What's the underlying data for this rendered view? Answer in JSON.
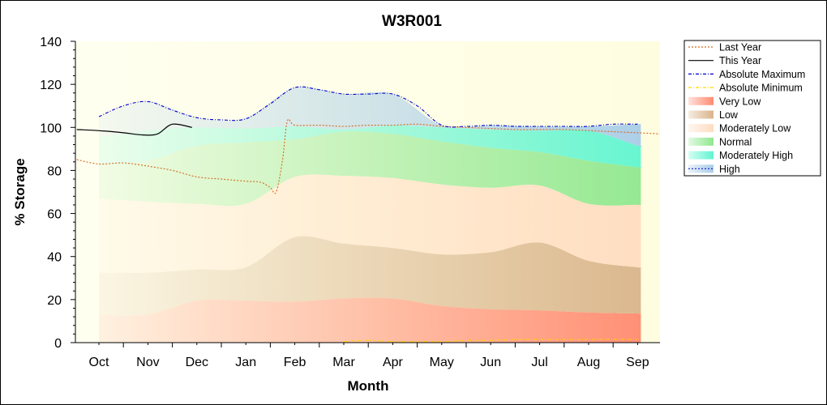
{
  "chart_data": {
    "type": "area",
    "title": "W3R001",
    "xlabel": "Month",
    "ylabel": "% Storage",
    "ylim": [
      0,
      140
    ],
    "yticks": [
      0,
      20,
      40,
      60,
      80,
      100,
      120,
      140
    ],
    "categories": [
      "Oct",
      "Nov",
      "Dec",
      "Jan",
      "Feb",
      "Mar",
      "Apr",
      "May",
      "Jun",
      "Jul",
      "Aug",
      "Sep"
    ],
    "grid": false,
    "legend_position": "right",
    "bands": [
      {
        "name": "Very Low",
        "color": "#ff8a70",
        "lower": [
          0,
          0,
          0,
          0,
          0,
          0,
          0,
          0,
          0,
          0,
          0,
          0,
          0
        ],
        "upper": [
          13,
          13,
          19.5,
          19.5,
          19,
          20.5,
          20.5,
          17,
          15.5,
          15,
          14,
          13.5,
          13.5
        ]
      },
      {
        "name": "Low",
        "color": "#d9b48a",
        "lower": [
          13,
          13,
          19.5,
          19.5,
          19,
          20.5,
          20.5,
          17,
          15.5,
          15,
          14,
          13.5,
          13.5
        ],
        "upper": [
          32.5,
          32.5,
          34,
          35,
          49,
          46,
          44,
          41,
          42,
          46.5,
          38,
          35,
          35
        ]
      },
      {
        "name": "Moderately Low",
        "color": "#ffdcc0",
        "lower": [
          32.5,
          32.5,
          34,
          35,
          49,
          46,
          44,
          41,
          42,
          46.5,
          38,
          35,
          35
        ],
        "upper": [
          67,
          65.5,
          64.5,
          64.5,
          77,
          77.5,
          76.5,
          73.5,
          72,
          73,
          64.5,
          64,
          64
        ]
      },
      {
        "name": "Normal",
        "color": "#8fe88f",
        "lower": [
          67,
          65.5,
          64.5,
          64.5,
          77,
          77.5,
          76.5,
          73.5,
          72,
          73,
          64.5,
          64,
          64
        ],
        "upper": [
          83,
          84.5,
          91.5,
          93,
          94.5,
          98,
          97,
          93.5,
          90.5,
          88.5,
          84.5,
          81.5,
          81.5
        ]
      },
      {
        "name": "Moderately High",
        "color": "#5ff5d0",
        "lower": [
          83,
          84.5,
          91.5,
          93,
          94.5,
          98,
          97,
          93.5,
          90.5,
          88.5,
          84.5,
          81.5,
          81.5
        ],
        "upper": [
          95.5,
          98.5,
          100,
          99.5,
          100.5,
          99,
          101,
          100,
          99,
          98.5,
          98.5,
          91.5,
          91.5
        ]
      },
      {
        "name": "High",
        "color": "#a8cde8",
        "lower": [
          95.5,
          98.5,
          100,
          99.5,
          100.5,
          99,
          101,
          100,
          99,
          98.5,
          98.5,
          91.5,
          91.5
        ],
        "upper": [
          105,
          112,
          104.5,
          104.5,
          118.5,
          115.5,
          115.5,
          101,
          101,
          100.5,
          100.5,
          101.5,
          101.5
        ]
      }
    ],
    "band_x": [
      0,
      1,
      2,
      3,
      4,
      5,
      6,
      7,
      8,
      9,
      10,
      11,
      11
    ],
    "lines": [
      {
        "name": "Last Year",
        "color": "#d2691e",
        "style": "dotted",
        "x": [
          -0.45,
          0,
          0.5,
          1,
          1.5,
          2,
          2.5,
          3,
          3.3,
          3.5,
          3.62,
          3.75,
          3.85,
          4,
          4.5,
          5,
          5.5,
          6,
          6.5,
          7,
          7.5,
          8,
          8.5,
          9,
          9.5,
          10,
          10.5,
          11,
          11.45
        ],
        "y": [
          85,
          83,
          83.5,
          82,
          80,
          77,
          76,
          75,
          74.5,
          72,
          70,
          85,
          103,
          101,
          101,
          100.5,
          101,
          101,
          101.5,
          100.5,
          100,
          99.5,
          99,
          99,
          99,
          98.5,
          98,
          97.5,
          97
        ]
      },
      {
        "name": "This Year",
        "color": "#000000",
        "style": "solid",
        "x": [
          -0.45,
          0,
          0.5,
          0.9,
          1.2,
          1.5,
          2,
          1.9
        ],
        "y": [
          99,
          98.5,
          97.5,
          96.5,
          97,
          101,
          100,
          101
        ],
        "x_fixed": [
          -0.45,
          0,
          0.5,
          0.9,
          1.2,
          1.5,
          1.9
        ],
        "y_fixed": [
          99,
          98.5,
          97.5,
          96.5,
          97,
          101.5,
          100
        ]
      },
      {
        "name": "Absolute Maximum",
        "color": "#0000cc",
        "style": "dashdot",
        "x": [
          0,
          0.5,
          1,
          1.5,
          2,
          2.5,
          3,
          3.5,
          4,
          4.5,
          5,
          5.5,
          6,
          6.5,
          7,
          7.5,
          8,
          8.5,
          9,
          9.5,
          10,
          10.5,
          11
        ],
        "y": [
          105,
          110,
          112,
          108,
          104.5,
          103.5,
          104,
          111,
          118.5,
          117.5,
          115.5,
          115.5,
          115.5,
          110,
          101,
          100.5,
          101,
          100.5,
          100.5,
          100.5,
          100.5,
          101.5,
          101.5
        ]
      },
      {
        "name": "Absolute Minimum",
        "color": "#ffd700",
        "style": "dashdot",
        "x": [
          5,
          5.5,
          6,
          6.5,
          7,
          7.5,
          8,
          8.5,
          9,
          9.5,
          10,
          10.5,
          11
        ],
        "y": [
          0.5,
          1,
          0.5,
          0.5,
          0.5,
          1,
          1,
          1.5,
          1.5,
          1.5,
          1.5,
          1.5,
          1.5
        ]
      }
    ],
    "legend": [
      "Last Year",
      "This Year",
      "Absolute Maximum",
      "Absolute Minimum",
      "Very Low",
      "Low",
      "Moderately Low",
      "Normal",
      "Moderately High",
      "High"
    ]
  }
}
